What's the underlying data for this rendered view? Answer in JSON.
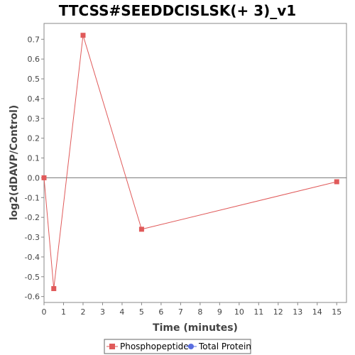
{
  "chart_data": {
    "type": "line",
    "title": "TTCSS#SEEDDCISLSK(+ 3)_v1",
    "xlabel": "Time (minutes)",
    "ylabel": "log2(dDAVP/Control)",
    "xlim": [
      0,
      15.5
    ],
    "ylim": [
      -0.63,
      0.78
    ],
    "xticks": [
      0,
      1,
      2,
      3,
      4,
      5,
      6,
      7,
      8,
      9,
      10,
      11,
      12,
      13,
      14,
      15
    ],
    "xtick_labels": [
      "0",
      "1",
      "2",
      "3",
      "4",
      "5",
      "6",
      "7",
      "8",
      "9",
      "10",
      "11",
      "12",
      "13",
      "14",
      "15"
    ],
    "yticks": [
      -0.6,
      -0.5,
      -0.4,
      -0.3,
      -0.2,
      -0.1,
      0.0,
      0.1,
      0.2,
      0.3,
      0.4,
      0.5,
      0.6,
      0.7
    ],
    "ytick_labels": [
      "-0.6",
      "-0.5",
      "-0.4",
      "-0.3",
      "-0.2",
      "-0.1",
      "0.0",
      "0.1",
      "0.2",
      "0.3",
      "0.4",
      "0.5",
      "0.6",
      "0.7"
    ],
    "grid": false,
    "zero_line": true,
    "legend_position": "bottom",
    "series": [
      {
        "name": "Phosphopeptide",
        "color": "#e05a5a",
        "marker": "square",
        "x": [
          0,
          0.5,
          2,
          5,
          15
        ],
        "y": [
          0.0,
          -0.56,
          0.72,
          -0.26,
          -0.02
        ]
      },
      {
        "name": "Total Protein",
        "color": "#5a6ee0",
        "marker": "circle",
        "x": [],
        "y": []
      }
    ]
  }
}
